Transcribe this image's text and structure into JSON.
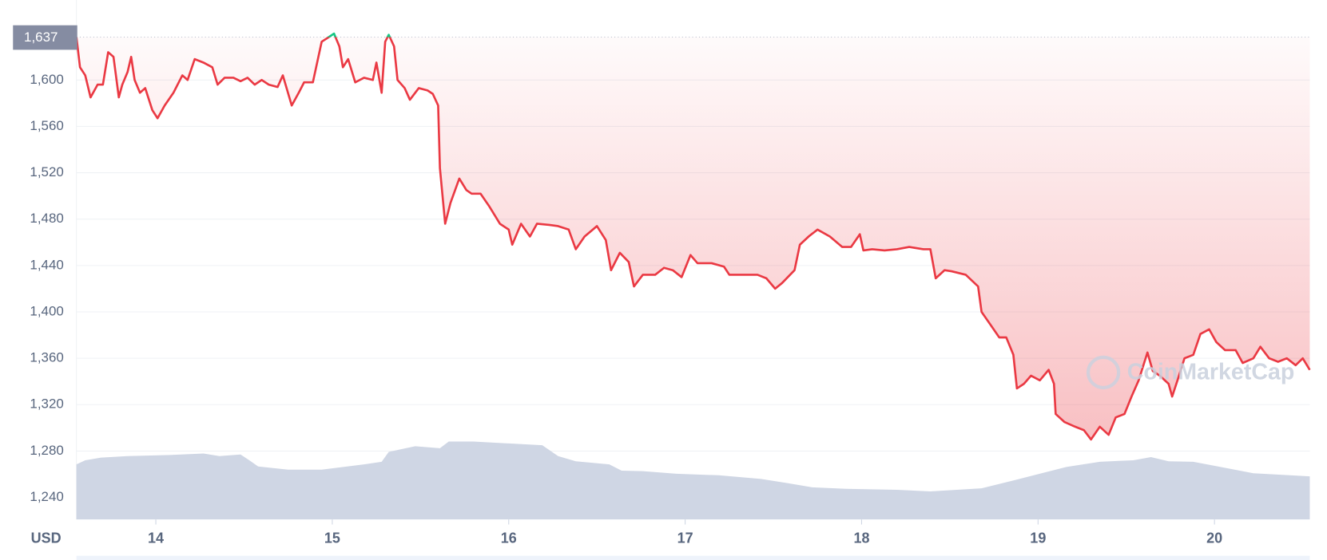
{
  "chart_data": {
    "type": "line",
    "price_color": "#ea3943",
    "above_color": "#16c784",
    "volume_color": "#cfd6e4",
    "reference": {
      "value": 1637,
      "label": "1,637"
    },
    "y_unit_label": "USD",
    "watermark": "CoinMarketCap",
    "grid": true,
    "xlim": [
      13.55,
      20.54
    ],
    "xticks": [
      14,
      15,
      16,
      17,
      18,
      19,
      20
    ],
    "ylim": [
      1221,
      1669
    ],
    "yticks": [
      {
        "value": 1240,
        "label": "1,240"
      },
      {
        "value": 1280,
        "label": "1,280"
      },
      {
        "value": 1320,
        "label": "1,320"
      },
      {
        "value": 1360,
        "label": "1,360"
      },
      {
        "value": 1400,
        "label": "1,400"
      },
      {
        "value": 1440,
        "label": "1,440"
      },
      {
        "value": 1480,
        "label": "1,480"
      },
      {
        "value": 1520,
        "label": "1,520"
      },
      {
        "value": 1560,
        "label": "1,560"
      },
      {
        "value": 1600,
        "label": "1,600"
      }
    ],
    "y2lim": [
      0,
      100
    ],
    "series": [
      {
        "x": [
          13.55,
          13.57,
          13.6,
          13.63,
          13.67,
          13.7,
          13.73,
          13.76,
          13.79,
          13.81,
          13.84,
          13.86,
          13.88,
          13.91,
          13.94,
          13.98,
          14.01,
          14.05,
          14.1,
          14.15,
          14.18,
          14.22,
          14.27,
          14.32,
          14.35,
          14.39,
          14.44,
          14.48,
          14.52,
          14.56,
          14.6,
          14.64,
          14.69,
          14.72,
          14.77,
          14.81,
          14.84,
          14.89,
          14.94,
          14.97,
          15.01,
          15.04,
          15.06,
          15.09,
          15.13,
          15.18,
          15.23,
          15.25,
          15.28,
          15.3,
          15.32,
          15.35,
          15.37,
          15.41,
          15.44,
          15.49,
          15.54,
          15.57,
          15.6,
          15.61,
          15.64,
          15.67,
          15.72,
          15.76,
          15.79,
          15.84,
          15.89,
          15.95,
          16.0,
          16.02,
          16.07,
          16.12,
          16.16,
          16.23,
          16.28,
          16.34,
          16.38,
          16.43,
          16.5,
          16.55,
          16.58,
          16.63,
          16.68,
          16.71,
          16.76,
          16.83,
          16.88,
          16.93,
          16.98,
          17.03,
          17.07,
          17.15,
          17.22,
          17.25,
          17.3,
          17.36,
          17.41,
          17.46,
          17.51,
          17.55,
          17.62,
          17.65,
          17.7,
          17.75,
          17.82,
          17.89,
          17.94,
          17.99,
          18.01,
          18.06,
          18.13,
          18.2,
          18.27,
          18.35,
          18.39,
          18.42,
          18.47,
          18.51,
          18.59,
          18.66,
          18.68,
          18.73,
          18.78,
          18.82,
          18.86,
          18.88,
          18.92,
          18.96,
          19.01,
          19.06,
          19.09,
          19.1,
          19.15,
          19.21,
          19.26,
          19.3,
          19.35,
          19.4,
          19.44,
          19.49,
          19.53,
          19.57,
          19.62,
          19.65,
          19.69,
          19.74,
          19.76,
          19.79,
          19.83,
          19.88,
          19.92,
          19.97,
          20.01,
          20.06,
          20.12,
          20.16,
          20.22,
          20.26,
          20.31,
          20.36,
          20.41,
          20.46,
          20.5,
          20.54
        ],
        "values": [
          1637,
          1611,
          1604,
          1585,
          1596,
          1596,
          1624,
          1620,
          1585,
          1596,
          1607,
          1620,
          1600,
          1589,
          1593,
          1574,
          1567,
          1578,
          1589,
          1604,
          1600,
          1618,
          1615,
          1611,
          1596,
          1602,
          1602,
          1599,
          1602,
          1596,
          1600,
          1596,
          1594,
          1604,
          1578,
          1589,
          1598,
          1598,
          1633,
          1636,
          1640,
          1629,
          1611,
          1618,
          1598,
          1602,
          1600,
          1615,
          1589,
          1633,
          1639,
          1629,
          1600,
          1593,
          1583,
          1593,
          1591,
          1588,
          1578,
          1524,
          1476,
          1494,
          1515,
          1505,
          1502,
          1502,
          1491,
          1476,
          1471,
          1458,
          1476,
          1465,
          1476,
          1475,
          1474,
          1471,
          1454,
          1465,
          1474,
          1462,
          1436,
          1451,
          1443,
          1422,
          1432,
          1432,
          1438,
          1436,
          1430,
          1449,
          1442,
          1442,
          1439,
          1432,
          1432,
          1432,
          1432,
          1429,
          1420,
          1425,
          1436,
          1458,
          1465,
          1471,
          1465,
          1456,
          1456,
          1467,
          1453,
          1454,
          1453,
          1454,
          1456,
          1454,
          1454,
          1429,
          1436,
          1435,
          1432,
          1422,
          1400,
          1389,
          1378,
          1378,
          1363,
          1334,
          1338,
          1345,
          1341,
          1350,
          1338,
          1312,
          1305,
          1301,
          1298,
          1290,
          1301,
          1294,
          1309,
          1312,
          1327,
          1341,
          1365,
          1349,
          1345,
          1338,
          1327,
          1341,
          1360,
          1363,
          1381,
          1385,
          1374,
          1367,
          1367,
          1356,
          1360,
          1370,
          1360,
          1357,
          1360,
          1354,
          1360,
          1350
        ]
      },
      {
        "axis": "y2",
        "x": [
          13.55,
          13.6,
          13.69,
          13.84,
          14.08,
          14.27,
          14.36,
          14.48,
          14.53,
          14.58,
          14.75,
          14.94,
          15.18,
          15.28,
          15.32,
          15.47,
          15.61,
          15.66,
          15.8,
          16.19,
          16.28,
          16.38,
          16.57,
          16.64,
          16.76,
          16.95,
          17.19,
          17.43,
          17.58,
          17.72,
          17.91,
          18.2,
          18.39,
          18.68,
          18.87,
          19.02,
          19.16,
          19.35,
          19.54,
          19.64,
          19.74,
          19.88,
          20.02,
          20.22,
          20.54
        ],
        "values": [
          10.6,
          11.4,
          11.9,
          12.2,
          12.4,
          12.7,
          12.2,
          12.5,
          11.4,
          10.2,
          9.6,
          9.6,
          10.6,
          11.1,
          13.0,
          14.1,
          13.7,
          15.0,
          15.0,
          14.3,
          12.2,
          11.2,
          10.6,
          9.4,
          9.3,
          8.8,
          8.5,
          7.8,
          7.0,
          6.2,
          5.9,
          5.7,
          5.4,
          6.0,
          7.6,
          8.9,
          10.1,
          11.1,
          11.4,
          12.0,
          11.2,
          11.1,
          10.2,
          8.9,
          8.3
        ]
      }
    ]
  }
}
